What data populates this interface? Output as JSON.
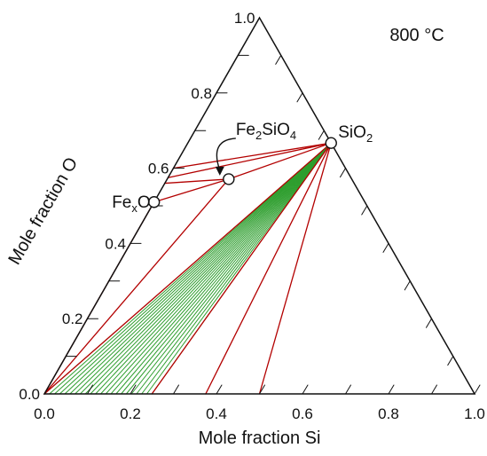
{
  "chart_data": {
    "type": "ternary-phase-diagram",
    "temperature_label": "800 °C",
    "axes": {
      "left": {
        "label_main": "Mole fraction ",
        "label_symbol": "O",
        "ticks": [
          "0.0",
          "0.2",
          "0.4",
          "0.6",
          "0.8",
          "1.0"
        ],
        "range": [
          0,
          1
        ]
      },
      "bottom": {
        "label": "Mole fraction Si",
        "ticks": [
          "0.0",
          "0.2",
          "0.4",
          "0.6",
          "0.8",
          "1.0"
        ],
        "range": [
          0,
          1
        ]
      }
    },
    "phases": [
      {
        "parts": [
          {
            "t": "SiO"
          },
          {
            "t": "2",
            "sub": true
          }
        ],
        "x_si": 0.333,
        "x_o": 0.667
      },
      {
        "parts": [
          {
            "t": "Fe"
          },
          {
            "t": "2",
            "sub": true
          },
          {
            "t": "SiO"
          },
          {
            "t": "4",
            "sub": true
          }
        ],
        "x_si": 0.143,
        "x_o": 0.571
      },
      {
        "parts": [
          {
            "t": "Fe"
          },
          {
            "t": "x",
            "sub": true
          },
          {
            "t": "O"
          }
        ],
        "x_si": 0.0,
        "x_o": 0.51
      }
    ],
    "red_tielines": [
      {
        "from": [
          0.333,
          0.667
        ],
        "to": [
          0.0,
          0.6
        ]
      },
      {
        "from": [
          0.333,
          0.667
        ],
        "to": [
          0.0,
          0.575
        ]
      },
      {
        "from": [
          0.333,
          0.667
        ],
        "to": [
          0.143,
          0.571
        ]
      },
      {
        "from": [
          0.333,
          0.667
        ],
        "to": [
          0.0,
          0.0
        ]
      },
      {
        "from": [
          0.333,
          0.667
        ],
        "to": [
          0.25,
          0.0
        ]
      },
      {
        "from": [
          0.333,
          0.667
        ],
        "to": [
          0.375,
          0.0
        ]
      },
      {
        "from": [
          0.333,
          0.667
        ],
        "to": [
          0.5,
          0.0
        ]
      },
      {
        "from": [
          0.143,
          0.571
        ],
        "to": [
          0.0,
          0.56
        ]
      },
      {
        "from": [
          0.143,
          0.571
        ],
        "to": [
          0.0,
          0.51
        ]
      },
      {
        "from": [
          0.143,
          0.571
        ],
        "to": [
          0.0,
          0.0
        ]
      },
      {
        "from": [
          0.0,
          0.51
        ],
        "to": [
          0.0,
          0.0
        ]
      }
    ],
    "green_fan": {
      "from_left": [
        0.0,
        0.0
      ],
      "from_right": [
        0.25,
        0.0
      ],
      "to_bottom": [
        0.333,
        0.667
      ],
      "to_top": [
        0.333,
        0.667
      ],
      "count": 22
    }
  }
}
